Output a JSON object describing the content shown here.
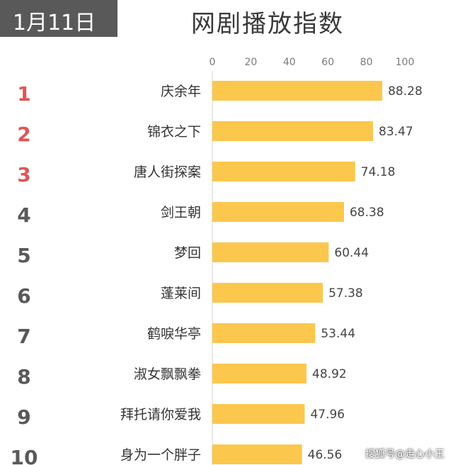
{
  "header": {
    "date": "1月11日",
    "title": "网剧播放指数"
  },
  "watermark": "搜狐号@走心小王",
  "colors": {
    "bar": "#fcc74d",
    "top_rank": "#e05555",
    "rank": "#595959"
  },
  "chart_data": {
    "type": "bar",
    "orientation": "horizontal",
    "title": "网剧播放指数",
    "xlim": [
      0,
      100
    ],
    "xticks": [
      0,
      20,
      40,
      60,
      80,
      100
    ],
    "ranks": [
      "1",
      "2",
      "3",
      "4",
      "5",
      "6",
      "7",
      "8",
      "9",
      "10"
    ],
    "categories": [
      "庆余年",
      "锦衣之下",
      "唐人街探案",
      "剑王朝",
      "梦回",
      "蓬莱间",
      "鹤唳华亭",
      "淑女飘飘拳",
      "拜托请你爱我",
      "身为一个胖子"
    ],
    "values": [
      88.28,
      83.47,
      74.18,
      68.38,
      60.44,
      57.38,
      53.44,
      48.92,
      47.96,
      46.56
    ],
    "value_labels": [
      "88.28",
      "83.47",
      "74.18",
      "68.38",
      "60.44",
      "57.38",
      "53.44",
      "48.92",
      "47.96",
      "46.56"
    ]
  }
}
